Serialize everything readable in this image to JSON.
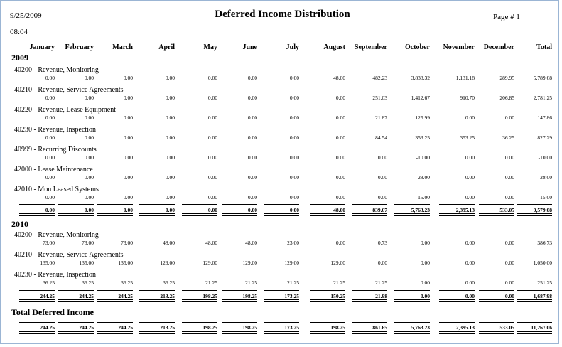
{
  "header": {
    "date": "9/25/2009",
    "time": "08:04",
    "title": "Deferred Income Distribution",
    "page_label": "Page #  1"
  },
  "columns": [
    "January",
    "February",
    "March",
    "April",
    "May",
    "June",
    "July",
    "August",
    "September",
    "October",
    "November",
    "December",
    "Total"
  ],
  "years": [
    {
      "year": "2009",
      "accounts": [
        {
          "name": "40200 - Revenue, Monitoring",
          "values": [
            "0.00",
            "0.00",
            "0.00",
            "0.00",
            "0.00",
            "0.00",
            "0.00",
            "48.00",
            "482.23",
            "3,838.32",
            "1,131.18",
            "289.95",
            "5,789.68"
          ]
        },
        {
          "name": "40210 - Revenue, Service Agreements",
          "values": [
            "0.00",
            "0.00",
            "0.00",
            "0.00",
            "0.00",
            "0.00",
            "0.00",
            "0.00",
            "251.03",
            "1,412.67",
            "910.70",
            "206.85",
            "2,781.25"
          ]
        },
        {
          "name": "40220 - Revenue, Lease Equipment",
          "values": [
            "0.00",
            "0.00",
            "0.00",
            "0.00",
            "0.00",
            "0.00",
            "0.00",
            "0.00",
            "21.87",
            "125.99",
            "0.00",
            "0.00",
            "147.86"
          ]
        },
        {
          "name": "40230 - Revenue, Inspection",
          "values": [
            "0.00",
            "0.00",
            "0.00",
            "0.00",
            "0.00",
            "0.00",
            "0.00",
            "0.00",
            "84.54",
            "353.25",
            "353.25",
            "36.25",
            "827.29"
          ]
        },
        {
          "name": "40999 - Recurring Discounts",
          "values": [
            "0.00",
            "0.00",
            "0.00",
            "0.00",
            "0.00",
            "0.00",
            "0.00",
            "0.00",
            "0.00",
            "-10.00",
            "0.00",
            "0.00",
            "-10.00"
          ]
        },
        {
          "name": "42000 - Lease Maintenance",
          "values": [
            "0.00",
            "0.00",
            "0.00",
            "0.00",
            "0.00",
            "0.00",
            "0.00",
            "0.00",
            "0.00",
            "28.00",
            "0.00",
            "0.00",
            "28.00"
          ]
        },
        {
          "name": "42010 - Mon Leased Systems",
          "values": [
            "0.00",
            "0.00",
            "0.00",
            "0.00",
            "0.00",
            "0.00",
            "0.00",
            "0.00",
            "0.00",
            "15.00",
            "0.00",
            "0.00",
            "15.00"
          ]
        }
      ],
      "totals": [
        "0.00",
        "0.00",
        "0.00",
        "0.00",
        "0.00",
        "0.00",
        "0.00",
        "48.00",
        "839.67",
        "5,763.23",
        "2,395.13",
        "533.05",
        "9,579.08"
      ]
    },
    {
      "year": "2010",
      "accounts": [
        {
          "name": "40200 - Revenue, Monitoring",
          "values": [
            "73.00",
            "73.00",
            "73.00",
            "48.00",
            "48.00",
            "48.00",
            "23.00",
            "0.00",
            "0.73",
            "0.00",
            "0.00",
            "0.00",
            "386.73"
          ]
        },
        {
          "name": "40210 - Revenue, Service Agreements",
          "values": [
            "135.00",
            "135.00",
            "135.00",
            "129.00",
            "129.00",
            "129.00",
            "129.00",
            "129.00",
            "0.00",
            "0.00",
            "0.00",
            "0.00",
            "1,050.00"
          ]
        },
        {
          "name": "40230 - Revenue, Inspection",
          "values": [
            "36.25",
            "36.25",
            "36.25",
            "36.25",
            "21.25",
            "21.25",
            "21.25",
            "21.25",
            "21.25",
            "0.00",
            "0.00",
            "0.00",
            "251.25"
          ]
        }
      ],
      "totals": [
        "244.25",
        "244.25",
        "244.25",
        "213.25",
        "198.25",
        "198.25",
        "173.25",
        "150.25",
        "21.98",
        "0.00",
        "0.00",
        "0.00",
        "1,687.98"
      ]
    }
  ],
  "grand_total": {
    "label": "Total Deferred Income",
    "values": [
      "244.25",
      "244.25",
      "244.25",
      "213.25",
      "198.25",
      "198.25",
      "173.25",
      "198.25",
      "861.65",
      "5,763.23",
      "2,395.13",
      "533.05",
      "11,267.06"
    ]
  }
}
